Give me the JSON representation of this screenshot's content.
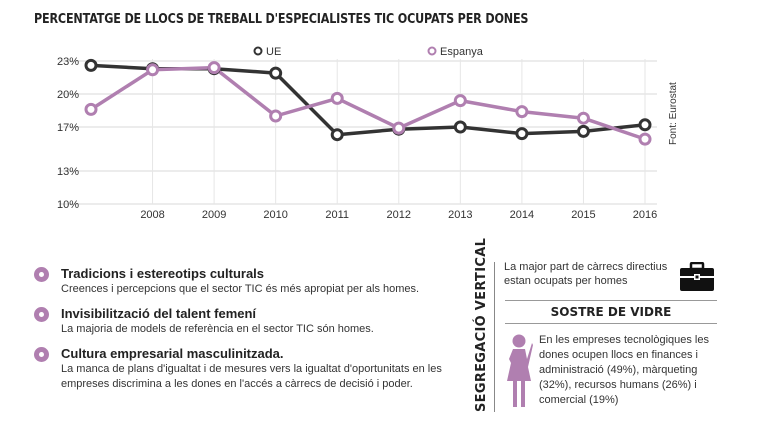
{
  "header": {
    "title": "PERCENTATGE DE LLOCS DE TREBALL D'ESPECIALISTES TIC OCUPATS PER DONES"
  },
  "chart_data": {
    "type": "line",
    "x": [
      2007,
      2008,
      2009,
      2010,
      2011,
      2012,
      2013,
      2014,
      2015,
      2016
    ],
    "tick_labels": [
      "2008",
      "2009",
      "2010",
      "2011",
      "2012",
      "2013",
      "2014",
      "2015",
      "2016"
    ],
    "yticks": [
      "23%",
      "20%",
      "17%",
      "13%",
      "10%"
    ],
    "ytick_values": [
      23,
      20,
      17,
      13,
      10
    ],
    "ylim": [
      10,
      23
    ],
    "series": [
      {
        "name": "UE",
        "color": "#333333",
        "values": [
          22.6,
          22.3,
          22.3,
          21.9,
          16.3,
          16.8,
          17.0,
          16.4,
          16.6,
          17.2
        ]
      },
      {
        "name": "Espanya",
        "color": "#b07fb0",
        "values": [
          18.6,
          22.2,
          22.4,
          18.0,
          19.6,
          16.9,
          19.4,
          18.4,
          17.8,
          15.9
        ]
      }
    ],
    "legend_position": "top-center",
    "source": "Font: Eurostat",
    "grid": true
  },
  "factors": [
    {
      "heading": "Tradicions i estereotips culturals",
      "text": "Creences i percepcions que el sector TIC és més apropiat per als homes."
    },
    {
      "heading": "Invisibilització del talent femení",
      "text": "La majoria de models de referència en el sector TIC són homes."
    },
    {
      "heading": "Cultura empresarial masculinitzada.",
      "text": "La manca de plans d'igualtat i de mesures vers la igualtat d'oportunitats en les empreses discrimina a les dones en l'accés a càrrecs de decisió i poder."
    }
  ],
  "segregation": {
    "label": "SEGREGACIÓ VERTICAL",
    "directius_text": "La major part de càrrecs directius estan ocupats per homes",
    "sostre_label": "SOSTRE DE VIDRE",
    "sostre_text": "En les empreses tecnològiques les dones ocupen llocs en finances i administració (49%), màrqueting (32%), recursos humans (26%) i comercial (19%)",
    "briefcase_icon": "briefcase-icon",
    "woman_icon": "woman-icon",
    "accent": "#b07fb0"
  }
}
